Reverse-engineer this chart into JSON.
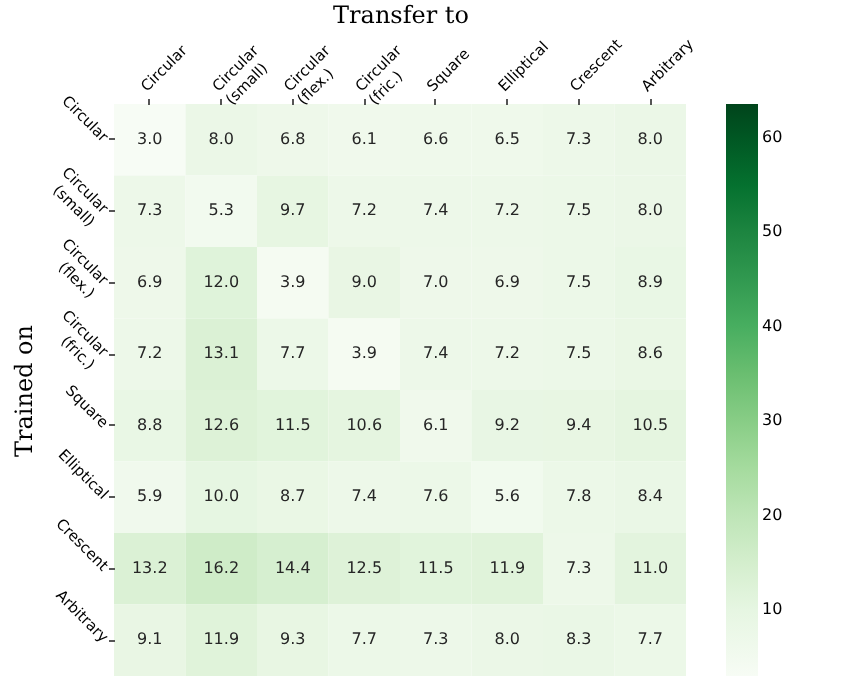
{
  "chart_data": {
    "type": "heatmap",
    "xlabel": "Transfer to",
    "ylabel": "Trained on",
    "categories": [
      "Circular",
      "Circular (small)",
      "Circular (flex.)",
      "Circular (fric.)",
      "Square",
      "Elliptical",
      "Crescent",
      "Arbitrary"
    ],
    "y_categories": [
      "Circular",
      "Circular (small)",
      "Circular (flex.)",
      "Circular (fric.)",
      "Square",
      "Elliptical",
      "Crescent",
      "Arbitrary"
    ],
    "cells": [
      [
        3.0,
        8.0,
        6.8,
        6.1,
        6.6,
        6.5,
        7.3,
        8.0
      ],
      [
        7.3,
        5.3,
        9.7,
        7.2,
        7.4,
        7.2,
        7.5,
        8.0
      ],
      [
        6.9,
        12.0,
        3.9,
        9.0,
        7.0,
        6.9,
        7.5,
        8.9
      ],
      [
        7.2,
        13.1,
        7.7,
        3.9,
        7.4,
        7.2,
        7.5,
        8.6
      ],
      [
        8.8,
        12.6,
        11.5,
        10.6,
        6.1,
        9.2,
        9.4,
        10.5
      ],
      [
        5.9,
        10.0,
        8.7,
        7.4,
        7.6,
        5.6,
        7.8,
        8.4
      ],
      [
        13.2,
        16.2,
        14.4,
        12.5,
        11.5,
        11.9,
        7.3,
        11.0
      ],
      [
        9.1,
        11.9,
        9.3,
        7.7,
        7.3,
        8.0,
        8.3,
        7.7
      ]
    ],
    "cell_labels": [
      [
        "3.0",
        "8.0",
        "6.8",
        "6.1",
        "6.6",
        "6.5",
        "7.3",
        "8.0"
      ],
      [
        "7.3",
        "5.3",
        "9.7",
        "7.2",
        "7.4",
        "7.2",
        "7.5",
        "8.0"
      ],
      [
        "6.9",
        "12.0",
        "3.9",
        "9.0",
        "7.0",
        "6.9",
        "7.5",
        "8.9"
      ],
      [
        "7.2",
        "13.1",
        "7.7",
        "3.9",
        "7.4",
        "7.2",
        "7.5",
        "8.6"
      ],
      [
        "8.8",
        "12.6",
        "11.5",
        "10.6",
        "6.1",
        "9.2",
        "9.4",
        "10.5"
      ],
      [
        "5.9",
        "10.0",
        "8.7",
        "7.4",
        "7.6",
        "5.6",
        "7.8",
        "8.4"
      ],
      [
        "13.2",
        "16.2",
        "14.4",
        "12.5",
        "11.5",
        "11.9",
        "7.3",
        "11.0"
      ],
      [
        "9.1",
        "11.9",
        "9.3",
        "7.7",
        "7.3",
        "8.0",
        "8.3",
        "7.7"
      ]
    ],
    "clim": [
      3.0,
      63.6
    ],
    "cticks": [
      10,
      20,
      30,
      40,
      50,
      60
    ]
  }
}
